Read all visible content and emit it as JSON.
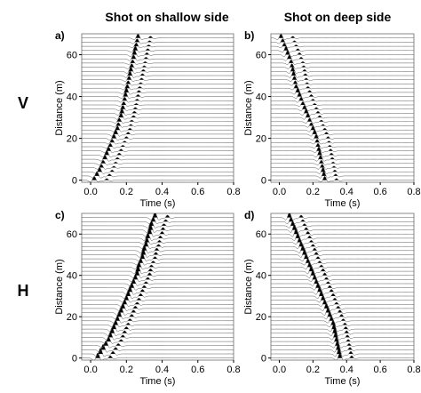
{
  "column_titles": [
    "Shot on shallow side",
    "Shot on deep side"
  ],
  "row_labels": [
    "V",
    "H"
  ],
  "chart_data": [
    {
      "type": "seismic-wiggle",
      "panel": "a)",
      "xlabel": "Time (s)",
      "ylabel": "Distance (m)",
      "xlim": [
        -0.05,
        0.8
      ],
      "ylim": [
        -1,
        70
      ],
      "xticks": [
        "0.0",
        "0.2",
        "0.4",
        "0.6",
        "0.8"
      ],
      "yticks": [
        "0",
        "20",
        "40",
        "60"
      ],
      "trace_distances": [
        0,
        2,
        4,
        6,
        8,
        10,
        12,
        14,
        16,
        18,
        20,
        22,
        24,
        26,
        28,
        30,
        32,
        34,
        36,
        38,
        40,
        42,
        44,
        46,
        48,
        50,
        52,
        54,
        56,
        58,
        60,
        62,
        64,
        66,
        68
      ],
      "arrival_times_s": [
        0.02,
        0.035,
        0.05,
        0.06,
        0.07,
        0.08,
        0.09,
        0.1,
        0.11,
        0.12,
        0.13,
        0.14,
        0.15,
        0.155,
        0.16,
        0.17,
        0.175,
        0.18,
        0.185,
        0.19,
        0.195,
        0.2,
        0.205,
        0.21,
        0.215,
        0.22,
        0.225,
        0.23,
        0.235,
        0.24,
        0.245,
        0.25,
        0.255,
        0.26,
        0.265
      ]
    },
    {
      "type": "seismic-wiggle",
      "panel": "b)",
      "xlabel": "Time (s)",
      "ylabel": "Distance (m)",
      "xlim": [
        -0.05,
        0.8
      ],
      "ylim": [
        -1,
        70
      ],
      "xticks": [
        "0.0",
        "0.2",
        "0.4",
        "0.6",
        "0.8"
      ],
      "yticks": [
        "0",
        "20",
        "40",
        "60"
      ],
      "trace_distances": [
        0,
        2,
        4,
        6,
        8,
        10,
        12,
        14,
        16,
        18,
        20,
        22,
        24,
        26,
        28,
        30,
        32,
        34,
        36,
        38,
        40,
        42,
        44,
        46,
        48,
        50,
        52,
        54,
        56,
        58,
        60,
        62,
        64,
        66,
        68
      ],
      "arrival_times_s": [
        0.27,
        0.265,
        0.26,
        0.255,
        0.25,
        0.245,
        0.24,
        0.235,
        0.23,
        0.225,
        0.22,
        0.21,
        0.2,
        0.19,
        0.18,
        0.17,
        0.16,
        0.15,
        0.14,
        0.13,
        0.12,
        0.11,
        0.1,
        0.095,
        0.09,
        0.085,
        0.08,
        0.075,
        0.07,
        0.06,
        0.05,
        0.04,
        0.03,
        0.02,
        0.01
      ]
    },
    {
      "type": "seismic-wiggle",
      "panel": "c)",
      "xlabel": "Time (s)",
      "ylabel": "Distance (m)",
      "xlim": [
        -0.05,
        0.8
      ],
      "ylim": [
        -1,
        70
      ],
      "xticks": [
        "0.0",
        "0.2",
        "0.4",
        "0.6",
        "0.8"
      ],
      "yticks": [
        "0",
        "20",
        "40",
        "60"
      ],
      "trace_distances": [
        0,
        2,
        4,
        6,
        8,
        10,
        12,
        14,
        16,
        18,
        20,
        22,
        24,
        26,
        28,
        30,
        32,
        34,
        36,
        38,
        40,
        42,
        44,
        46,
        48,
        50,
        52,
        54,
        56,
        58,
        60,
        62,
        64,
        66,
        68
      ],
      "arrival_times_s": [
        0.04,
        0.055,
        0.07,
        0.085,
        0.1,
        0.11,
        0.12,
        0.13,
        0.14,
        0.15,
        0.16,
        0.17,
        0.18,
        0.19,
        0.2,
        0.21,
        0.22,
        0.23,
        0.24,
        0.25,
        0.26,
        0.265,
        0.27,
        0.28,
        0.29,
        0.295,
        0.3,
        0.31,
        0.315,
        0.32,
        0.33,
        0.335,
        0.34,
        0.35,
        0.36
      ]
    },
    {
      "type": "seismic-wiggle",
      "panel": "d)",
      "xlabel": "Time (s)",
      "ylabel": "Distance (m)",
      "xlim": [
        -0.05,
        0.8
      ],
      "ylim": [
        -1,
        70
      ],
      "xticks": [
        "0.0",
        "0.2",
        "0.4",
        "0.6",
        "0.8"
      ],
      "yticks": [
        "0",
        "20",
        "40",
        "60"
      ],
      "trace_distances": [
        0,
        2,
        4,
        6,
        8,
        10,
        12,
        14,
        16,
        18,
        20,
        22,
        24,
        26,
        28,
        30,
        32,
        34,
        36,
        38,
        40,
        42,
        44,
        46,
        48,
        50,
        52,
        54,
        56,
        58,
        60,
        62,
        64,
        66,
        68
      ],
      "arrival_times_s": [
        0.36,
        0.355,
        0.35,
        0.345,
        0.34,
        0.335,
        0.33,
        0.325,
        0.32,
        0.31,
        0.3,
        0.29,
        0.28,
        0.27,
        0.26,
        0.25,
        0.24,
        0.23,
        0.22,
        0.21,
        0.2,
        0.19,
        0.18,
        0.17,
        0.16,
        0.15,
        0.14,
        0.13,
        0.12,
        0.11,
        0.1,
        0.09,
        0.08,
        0.07,
        0.06
      ]
    }
  ]
}
